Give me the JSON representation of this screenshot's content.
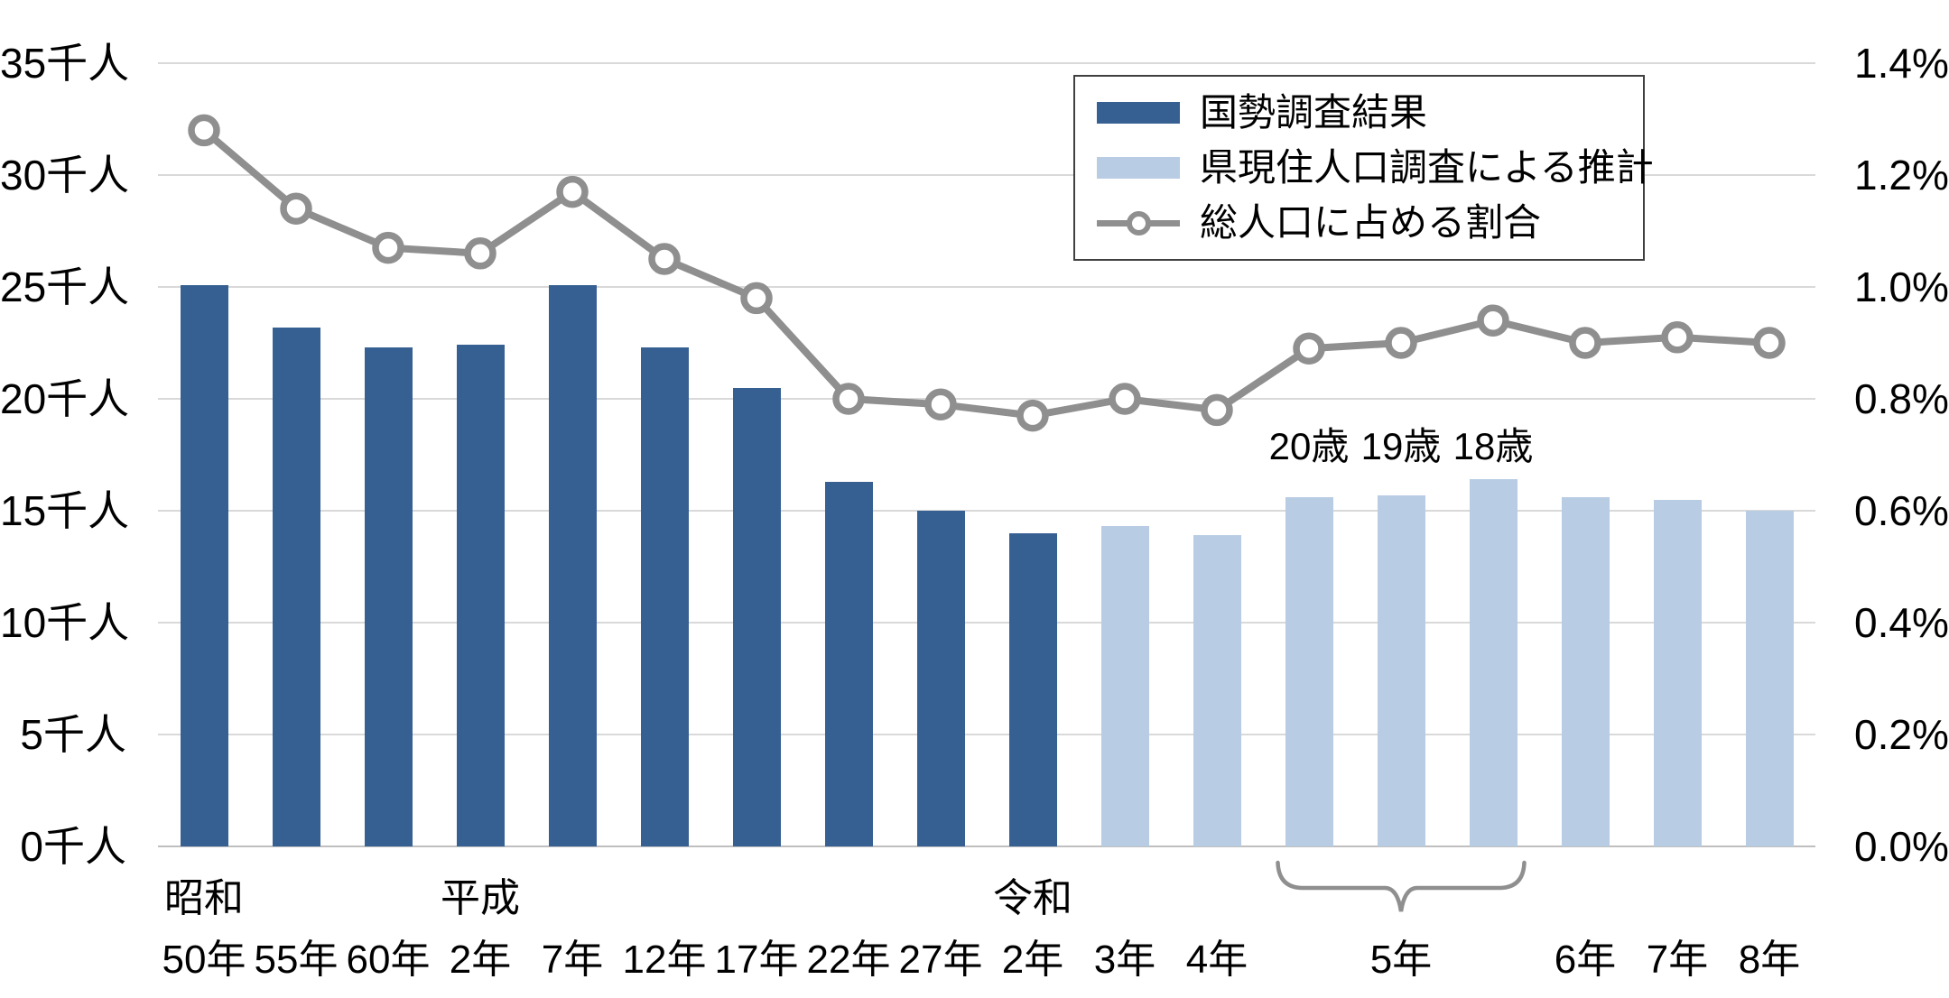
{
  "chart_data": {
    "type": "bar",
    "title": "",
    "categories": [
      "昭和50年",
      "55年",
      "60年",
      "平成2年",
      "7年",
      "12年",
      "17年",
      "22年",
      "27年",
      "令和2年",
      "3年",
      "4年",
      "5年(20歳)",
      "5年(19歳)",
      "5年(18歳)",
      "6年",
      "7年",
      "8年"
    ],
    "series": [
      {
        "name": "国勢調査結果",
        "type": "bar",
        "axis": "left",
        "color": "#366092",
        "values": [
          25.1,
          23.2,
          22.3,
          22.4,
          25.1,
          22.3,
          20.5,
          16.3,
          15.0,
          14.0,
          null,
          null,
          null,
          null,
          null,
          null,
          null,
          null
        ]
      },
      {
        "name": "県現住人口調査による推計",
        "type": "bar",
        "axis": "left",
        "color": "#B8CCE4",
        "values": [
          null,
          null,
          null,
          null,
          null,
          null,
          null,
          null,
          null,
          null,
          14.3,
          13.9,
          15.6,
          15.7,
          16.4,
          15.6,
          15.5,
          15.0
        ]
      },
      {
        "name": "総人口に占める割合",
        "type": "line",
        "axis": "right",
        "color": "#8F8F8F",
        "values": [
          1.28,
          1.14,
          1.07,
          1.06,
          1.17,
          1.05,
          0.98,
          0.8,
          0.79,
          0.77,
          0.8,
          0.78,
          0.89,
          0.9,
          0.94,
          0.9,
          0.91,
          0.9
        ]
      }
    ],
    "left_axis": {
      "unit": "千人",
      "min": 0,
      "max": 35,
      "ticks": [
        "35千人",
        "30千人",
        "25千人",
        "20千人",
        "15千人",
        "10千人",
        "5千人",
        "0千人"
      ]
    },
    "right_axis": {
      "unit": "%",
      "min": 0,
      "max": 1.4,
      "ticks": [
        "1.4%",
        "1.2%",
        "1.0%",
        "0.8%",
        "0.6%",
        "0.4%",
        "0.2%",
        "0.0%"
      ]
    },
    "grid": true,
    "legend_position": "top-right"
  },
  "x_axis": {
    "era_labels": [
      {
        "slot": 0,
        "text": "昭和"
      },
      {
        "slot": 3,
        "text": "平成"
      },
      {
        "slot": 9,
        "text": "令和"
      }
    ],
    "year_labels": [
      {
        "slot": 0,
        "text": "50年"
      },
      {
        "slot": 1,
        "text": "55年"
      },
      {
        "slot": 2,
        "text": "60年"
      },
      {
        "slot": 3,
        "text": "2年"
      },
      {
        "slot": 4,
        "text": "7年"
      },
      {
        "slot": 5,
        "text": "12年"
      },
      {
        "slot": 6,
        "text": "17年"
      },
      {
        "slot": 7,
        "text": "22年"
      },
      {
        "slot": 8,
        "text": "27年"
      },
      {
        "slot": 9,
        "text": "2年"
      },
      {
        "slot": 10,
        "text": "3年"
      },
      {
        "slot": 11,
        "text": "4年"
      },
      {
        "slot": 13,
        "text": "5年"
      },
      {
        "slot": 15,
        "text": "6年"
      },
      {
        "slot": 16,
        "text": "7年"
      },
      {
        "slot": 17,
        "text": "8年"
      }
    ],
    "age_labels": [
      {
        "slot": 12,
        "text": "20歳"
      },
      {
        "slot": 13,
        "text": "19歳"
      },
      {
        "slot": 14,
        "text": "18歳"
      }
    ],
    "brace_group": {
      "from_slot": 12,
      "to_slot": 14,
      "label": "5年"
    }
  },
  "legend": {
    "items": [
      {
        "label": "国勢調査結果",
        "swatch": "bar",
        "color": "#366092"
      },
      {
        "label": "県現住人口調査による推計",
        "swatch": "bar",
        "color": "#B8CCE4"
      },
      {
        "label": "総人口に占める割合",
        "swatch": "line-marker",
        "color": "#8F8F8F"
      }
    ]
  },
  "colors": {
    "bar_census": "#366092",
    "bar_estimate": "#B8CCE4",
    "line": "#8F8F8F",
    "grid": "#D9D9D9",
    "axis_line": "#BFBFBF",
    "brace": "#8F8F8F",
    "text": "#000000",
    "legend_border": "#404040"
  }
}
